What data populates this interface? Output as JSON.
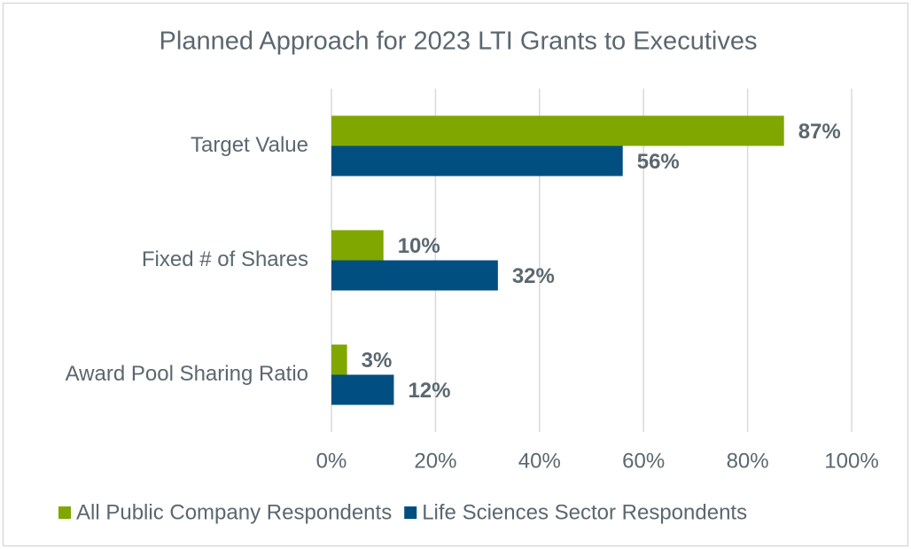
{
  "chart_data": {
    "type": "hbar",
    "title": "Planned Approach for 2023 LTI Grants to Executives",
    "categories": [
      "Target Value",
      "Fixed # of Shares",
      "Award Pool Sharing Ratio"
    ],
    "series": [
      {
        "name": "All Public Company Respondents",
        "color": "#80a600",
        "values": [
          87,
          10,
          3
        ],
        "value_labels": [
          "87%",
          "10%",
          "3%"
        ]
      },
      {
        "name": "Life Sciences Sector Respondents",
        "color": "#004f80",
        "values": [
          56,
          32,
          12
        ],
        "value_labels": [
          "56%",
          "32%",
          "12%"
        ]
      }
    ],
    "xlim": [
      0,
      100
    ],
    "xticks": [
      {
        "value": 0,
        "label": "0%"
      },
      {
        "value": 20,
        "label": "20%"
      },
      {
        "value": 40,
        "label": "40%"
      },
      {
        "value": 60,
        "label": "60%"
      },
      {
        "value": 80,
        "label": "80%"
      },
      {
        "value": 100,
        "label": "100%"
      }
    ],
    "grid": true,
    "legend": "bottom"
  }
}
